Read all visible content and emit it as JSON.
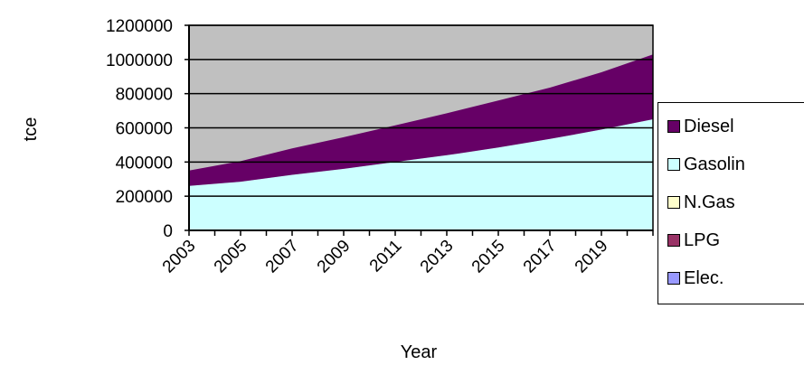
{
  "chart_data": {
    "type": "area",
    "stacked": true,
    "title": "",
    "xlabel": "Year",
    "ylabel": "tce",
    "ylim": [
      0,
      1200000
    ],
    "yticks": [
      0,
      200000,
      400000,
      600000,
      800000,
      1000000,
      1200000
    ],
    "ytick_labels": [
      "0",
      "200000",
      "400000",
      "600000",
      "800000",
      "1000000",
      "1200000"
    ],
    "xlim": [
      2003,
      2021
    ],
    "xticks": [
      2003,
      2005,
      2007,
      2009,
      2011,
      2013,
      2015,
      2017,
      2019
    ],
    "xtick_labels": [
      "2003",
      "2005",
      "2007",
      "2009",
      "2011",
      "2013",
      "2015",
      "2017",
      "2019"
    ],
    "x": [
      2003,
      2005,
      2007,
      2009,
      2011,
      2013,
      2015,
      2017,
      2019,
      2021
    ],
    "grid": "horizontal",
    "plot_background": "#c0c0c0",
    "legend_position": "right",
    "series": [
      {
        "name": "Gasolin",
        "color": "#ccffff",
        "values": [
          260000,
          285000,
          325000,
          360000,
          400000,
          440000,
          485000,
          535000,
          590000,
          650000
        ]
      },
      {
        "name": "Diesel",
        "color": "#660066",
        "values": [
          90000,
          120000,
          155000,
          185000,
          215000,
          245000,
          275000,
          300000,
          335000,
          380000
        ]
      },
      {
        "name": "N.Gas",
        "color": "#ffffcc",
        "values": [
          0,
          0,
          0,
          0,
          0,
          0,
          0,
          0,
          0,
          0
        ]
      },
      {
        "name": "LPG",
        "color": "#993366",
        "values": [
          0,
          0,
          0,
          0,
          0,
          0,
          0,
          0,
          0,
          0
        ]
      },
      {
        "name": "Elec.",
        "color": "#9999ff",
        "values": [
          0,
          0,
          0,
          0,
          0,
          0,
          0,
          0,
          0,
          0
        ]
      }
    ],
    "legend_order": [
      "Diesel",
      "Gasolin",
      "N.Gas",
      "LPG",
      "Elec."
    ]
  }
}
